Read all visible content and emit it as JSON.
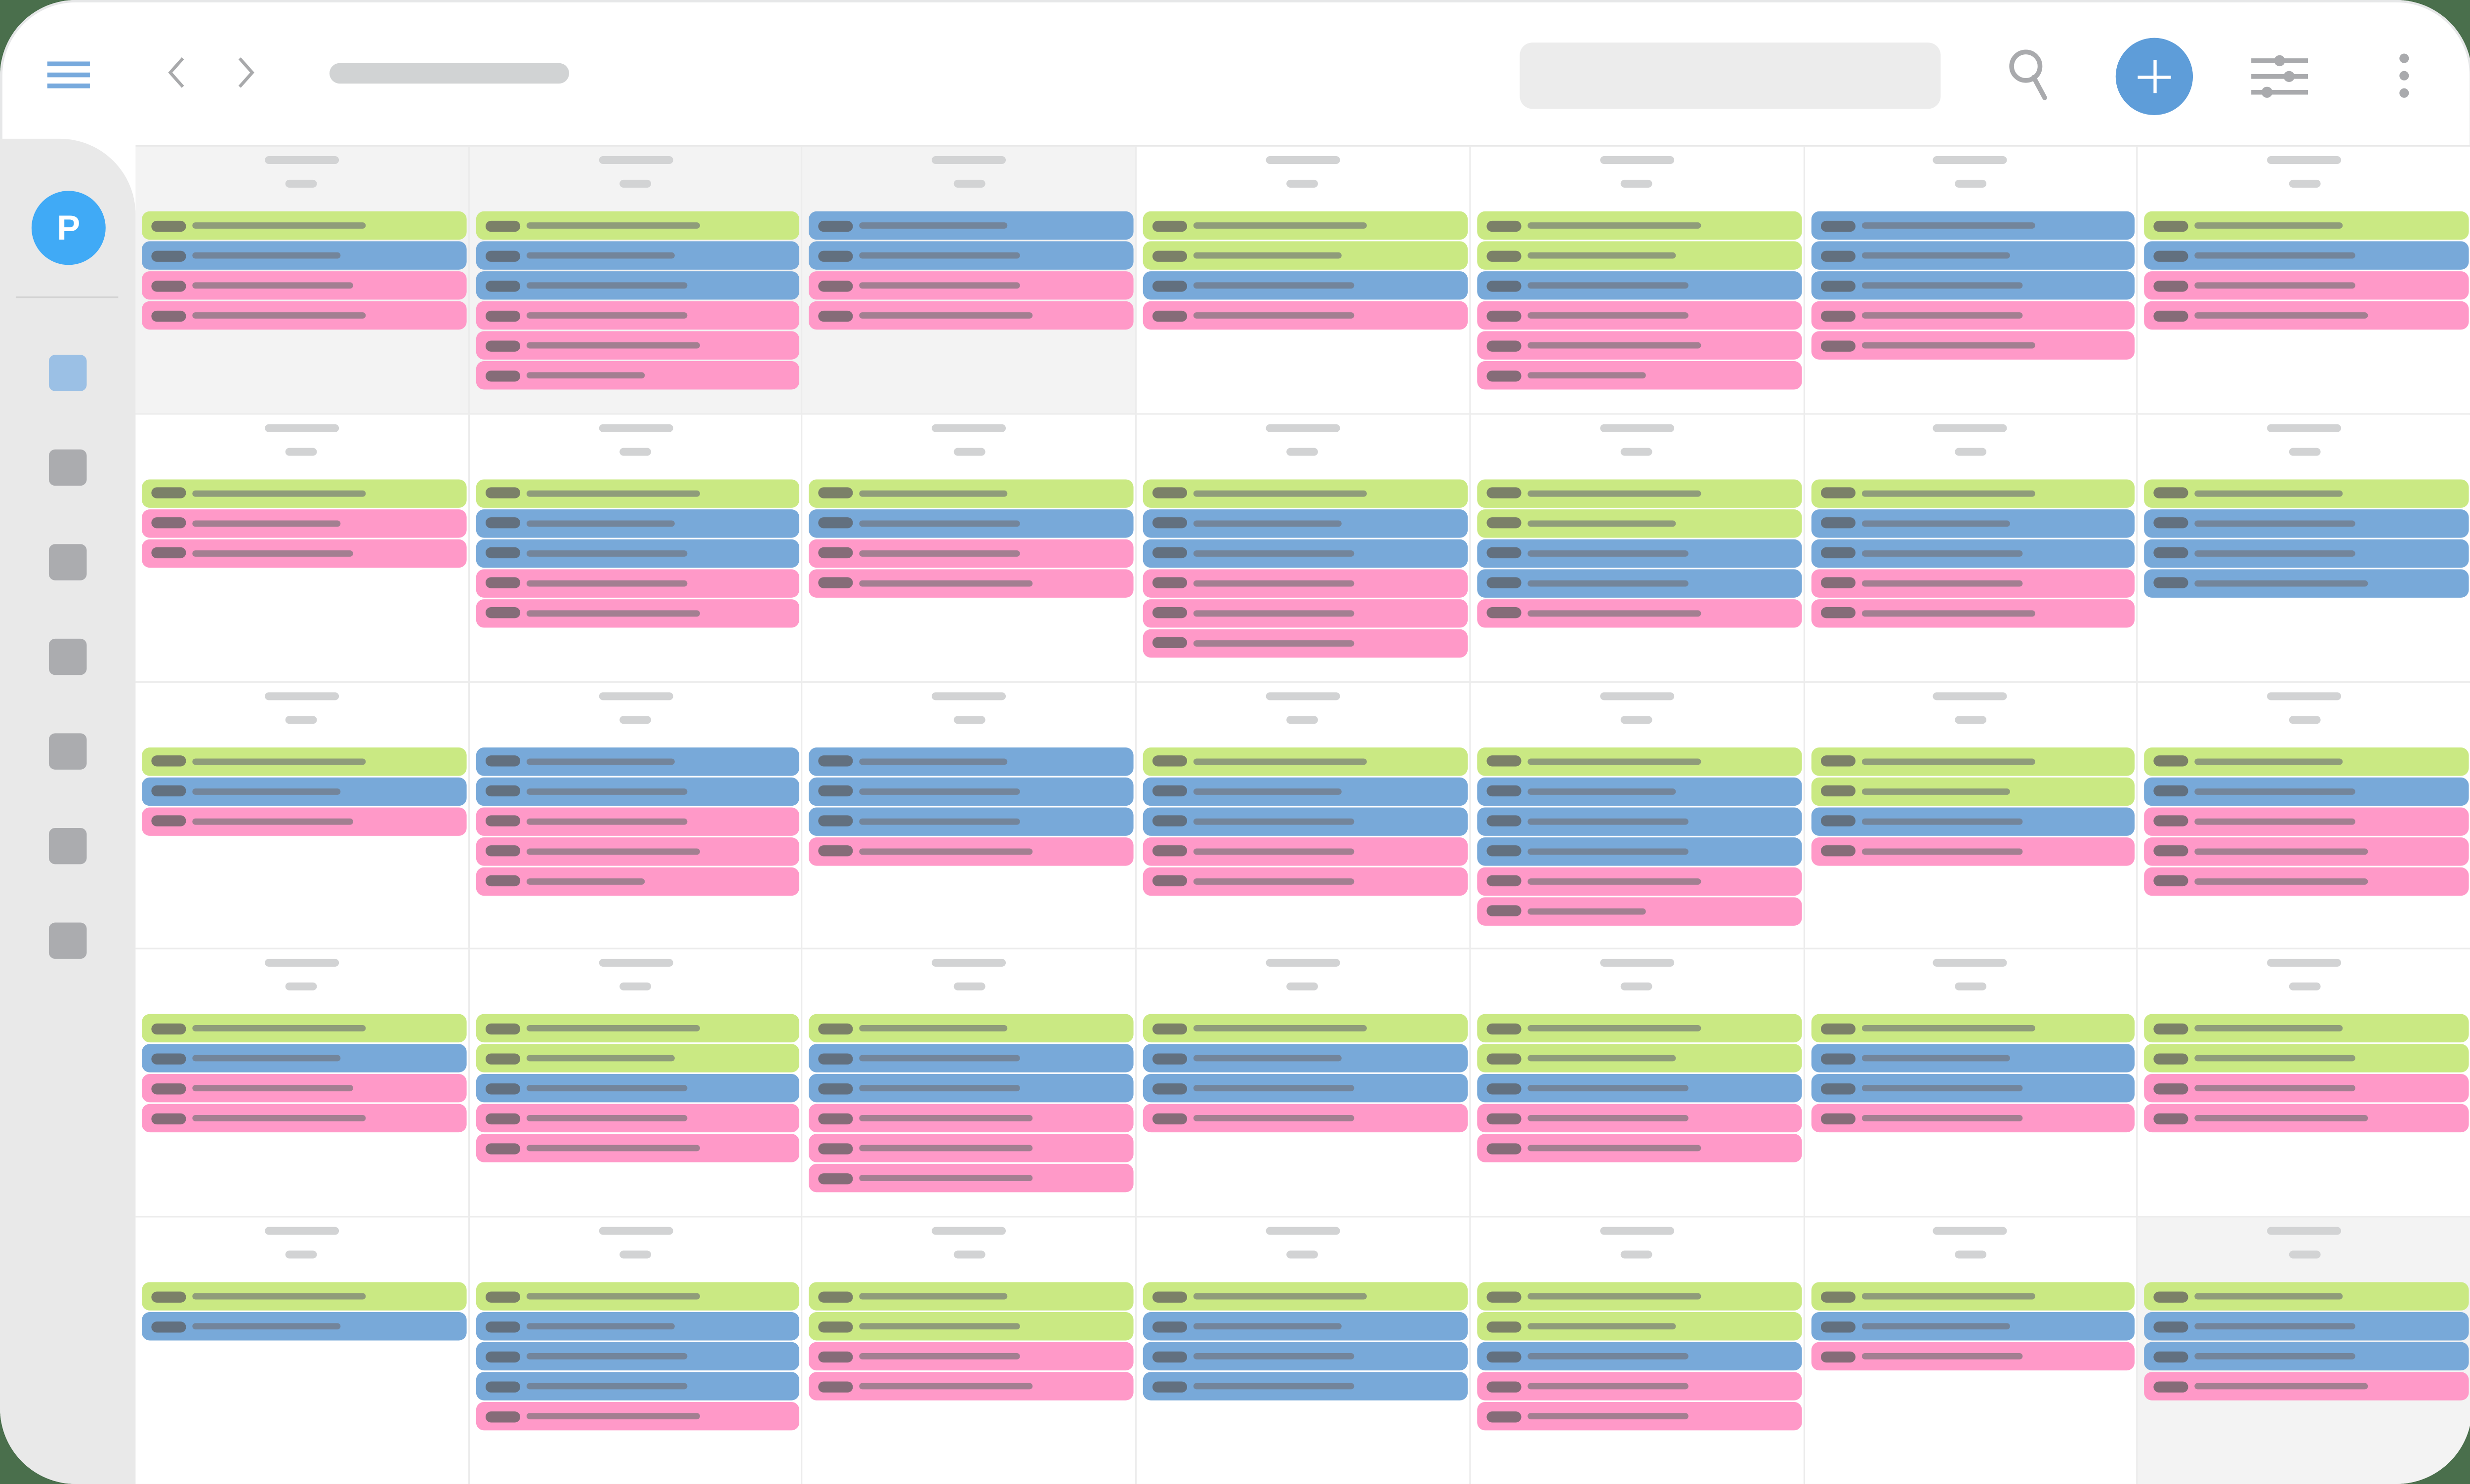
{
  "colors": {
    "accent": "#5e9dd9",
    "avatar": "#40aaf6",
    "event_green": "#cae983",
    "event_blue": "#78a9d9",
    "event_pink": "#ff99c8",
    "sidebar_bg": "#e9e9e9",
    "other_month_bg": "#f3f3f3"
  },
  "toolbar": {
    "menu_icon": "hamburger-menu-icon",
    "prev_icon": "chevron-left-icon",
    "next_icon": "chevron-right-icon",
    "title_placeholder": "",
    "search_placeholder": "",
    "search_icon": "magnifier-icon",
    "add_icon": "plus-icon",
    "filter_icon": "sliders-icon",
    "more_icon": "vertical-ellipsis-icon"
  },
  "sidebar": {
    "avatar_initial": "P",
    "items": [
      {
        "active": true
      },
      {
        "active": false
      },
      {
        "active": false
      },
      {
        "active": false
      },
      {
        "active": false
      },
      {
        "active": false
      },
      {
        "active": false
      }
    ]
  },
  "calendar": {
    "view": "month",
    "rows": 5,
    "columns": 7,
    "legend": {
      "g": "green",
      "b": "blue",
      "p": "pink"
    },
    "weeks": [
      [
        {
          "other": true,
          "events": [
            [
              "g",
              110
            ],
            [
              "b",
              94
            ],
            [
              "p",
              102
            ],
            [
              "p",
              110
            ]
          ]
        },
        {
          "other": true,
          "events": [
            [
              "g",
              110
            ],
            [
              "b",
              94
            ],
            [
              "b",
              102
            ],
            [
              "p",
              102
            ],
            [
              "p",
              110
            ],
            [
              "p",
              75
            ]
          ]
        },
        {
          "other": true,
          "events": [
            [
              "b",
              94
            ],
            [
              "b",
              102
            ],
            [
              "p",
              102
            ],
            [
              "p",
              110
            ]
          ]
        },
        {
          "other": false,
          "events": [
            [
              "g",
              110
            ],
            [
              "g",
              94
            ],
            [
              "b",
              102
            ],
            [
              "p",
              102
            ]
          ]
        },
        {
          "other": false,
          "events": [
            [
              "g",
              110
            ],
            [
              "g",
              94
            ],
            [
              "b",
              102
            ],
            [
              "p",
              102
            ],
            [
              "p",
              110
            ],
            [
              "p",
              75
            ]
          ]
        },
        {
          "other": false,
          "events": [
            [
              "b",
              110
            ],
            [
              "b",
              94
            ],
            [
              "b",
              102
            ],
            [
              "p",
              102
            ],
            [
              "p",
              110
            ]
          ]
        },
        {
          "other": false,
          "events": [
            [
              "g",
              94
            ],
            [
              "b",
              102
            ],
            [
              "p",
              102
            ],
            [
              "p",
              110
            ]
          ]
        }
      ],
      [
        {
          "other": false,
          "events": [
            [
              "g",
              110
            ],
            [
              "p",
              94
            ],
            [
              "p",
              102
            ]
          ]
        },
        {
          "other": false,
          "events": [
            [
              "g",
              110
            ],
            [
              "b",
              94
            ],
            [
              "b",
              102
            ],
            [
              "p",
              102
            ],
            [
              "p",
              110
            ]
          ]
        },
        {
          "other": false,
          "events": [
            [
              "g",
              94
            ],
            [
              "b",
              102
            ],
            [
              "p",
              102
            ],
            [
              "p",
              110
            ]
          ]
        },
        {
          "other": false,
          "events": [
            [
              "g",
              110
            ],
            [
              "b",
              94
            ],
            [
              "b",
              102
            ],
            [
              "p",
              102
            ],
            [
              "p",
              102
            ],
            [
              "p",
              102
            ]
          ]
        },
        {
          "other": false,
          "events": [
            [
              "g",
              110
            ],
            [
              "g",
              94
            ],
            [
              "b",
              102
            ],
            [
              "b",
              102
            ],
            [
              "p",
              110
            ]
          ]
        },
        {
          "other": false,
          "events": [
            [
              "g",
              110
            ],
            [
              "b",
              94
            ],
            [
              "b",
              102
            ],
            [
              "p",
              102
            ],
            [
              "p",
              110
            ]
          ]
        },
        {
          "other": false,
          "events": [
            [
              "g",
              94
            ],
            [
              "b",
              102
            ],
            [
              "b",
              102
            ],
            [
              "b",
              110
            ]
          ]
        }
      ],
      [
        {
          "other": false,
          "events": [
            [
              "g",
              110
            ],
            [
              "b",
              94
            ],
            [
              "p",
              102
            ]
          ]
        },
        {
          "other": false,
          "events": [
            [
              "b",
              94
            ],
            [
              "b",
              102
            ],
            [
              "p",
              102
            ],
            [
              "p",
              110
            ],
            [
              "p",
              75
            ]
          ]
        },
        {
          "other": false,
          "events": [
            [
              "b",
              94
            ],
            [
              "b",
              102
            ],
            [
              "b",
              102
            ],
            [
              "p",
              110
            ]
          ]
        },
        {
          "other": false,
          "events": [
            [
              "g",
              110
            ],
            [
              "b",
              94
            ],
            [
              "b",
              102
            ],
            [
              "p",
              102
            ],
            [
              "p",
              102
            ]
          ]
        },
        {
          "other": false,
          "events": [
            [
              "g",
              110
            ],
            [
              "b",
              94
            ],
            [
              "b",
              102
            ],
            [
              "b",
              102
            ],
            [
              "p",
              110
            ],
            [
              "p",
              75
            ]
          ]
        },
        {
          "other": false,
          "events": [
            [
              "g",
              110
            ],
            [
              "g",
              94
            ],
            [
              "b",
              102
            ],
            [
              "p",
              102
            ]
          ]
        },
        {
          "other": false,
          "events": [
            [
              "g",
              94
            ],
            [
              "b",
              102
            ],
            [
              "p",
              102
            ],
            [
              "p",
              110
            ],
            [
              "p",
              110
            ]
          ]
        }
      ],
      [
        {
          "other": false,
          "events": [
            [
              "g",
              110
            ],
            [
              "b",
              94
            ],
            [
              "p",
              102
            ],
            [
              "p",
              110
            ]
          ]
        },
        {
          "other": false,
          "events": [
            [
              "g",
              110
            ],
            [
              "g",
              94
            ],
            [
              "b",
              102
            ],
            [
              "p",
              102
            ],
            [
              "p",
              110
            ]
          ]
        },
        {
          "other": false,
          "events": [
            [
              "g",
              94
            ],
            [
              "b",
              102
            ],
            [
              "b",
              102
            ],
            [
              "p",
              110
            ],
            [
              "p",
              110
            ],
            [
              "p",
              110
            ]
          ]
        },
        {
          "other": false,
          "events": [
            [
              "g",
              110
            ],
            [
              "b",
              94
            ],
            [
              "b",
              102
            ],
            [
              "p",
              102
            ]
          ]
        },
        {
          "other": false,
          "events": [
            [
              "g",
              110
            ],
            [
              "g",
              94
            ],
            [
              "b",
              102
            ],
            [
              "p",
              102
            ],
            [
              "p",
              110
            ]
          ]
        },
        {
          "other": false,
          "events": [
            [
              "g",
              110
            ],
            [
              "b",
              94
            ],
            [
              "b",
              102
            ],
            [
              "p",
              102
            ]
          ]
        },
        {
          "other": false,
          "events": [
            [
              "g",
              94
            ],
            [
              "g",
              102
            ],
            [
              "p",
              102
            ],
            [
              "p",
              110
            ]
          ]
        }
      ],
      [
        {
          "other": false,
          "events": [
            [
              "g",
              110
            ],
            [
              "b",
              94
            ]
          ]
        },
        {
          "other": false,
          "events": [
            [
              "g",
              110
            ],
            [
              "b",
              94
            ],
            [
              "b",
              102
            ],
            [
              "b",
              102
            ],
            [
              "p",
              110
            ]
          ]
        },
        {
          "other": false,
          "events": [
            [
              "g",
              94
            ],
            [
              "g",
              102
            ],
            [
              "p",
              102
            ],
            [
              "p",
              110
            ]
          ]
        },
        {
          "other": false,
          "events": [
            [
              "g",
              110
            ],
            [
              "b",
              94
            ],
            [
              "b",
              102
            ],
            [
              "b",
              102
            ]
          ]
        },
        {
          "other": false,
          "events": [
            [
              "g",
              110
            ],
            [
              "g",
              94
            ],
            [
              "b",
              102
            ],
            [
              "p",
              102
            ],
            [
              "p",
              102
            ]
          ]
        },
        {
          "other": false,
          "events": [
            [
              "g",
              110
            ],
            [
              "b",
              94
            ],
            [
              "p",
              102
            ]
          ]
        },
        {
          "other": true,
          "events": [
            [
              "g",
              94
            ],
            [
              "b",
              102
            ],
            [
              "b",
              102
            ],
            [
              "p",
              110
            ]
          ]
        }
      ]
    ]
  }
}
